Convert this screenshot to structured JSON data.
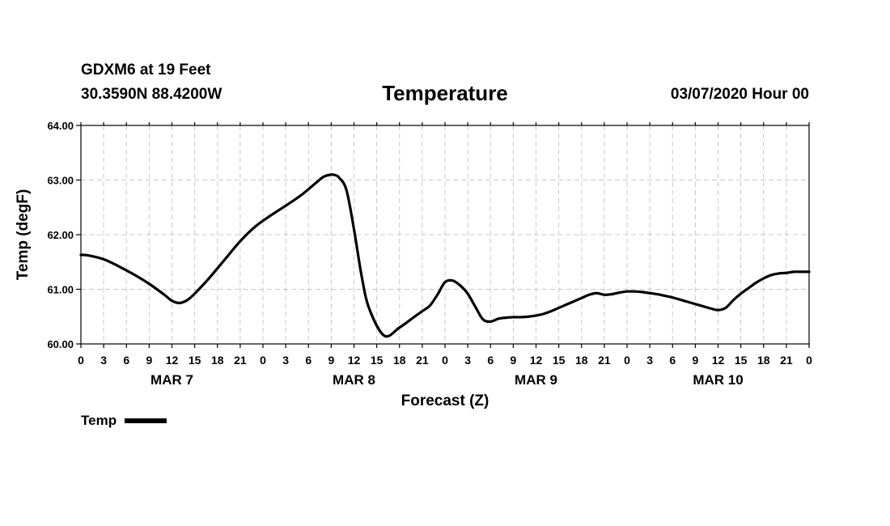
{
  "header": {
    "station": "GDXM6 at 19 Feet",
    "coords": "30.3590N 88.4200W",
    "datetime": "03/07/2020 Hour 00"
  },
  "chart_data": {
    "type": "line",
    "title": "Temperature",
    "xlabel": "Forecast (Z)",
    "ylabel": "Temp (degF)",
    "ylim": [
      60,
      64
    ],
    "y_ticks": [
      "60.00",
      "61.00",
      "62.00",
      "63.00",
      "64.00"
    ],
    "x_range_hours": [
      0,
      96
    ],
    "x_tick_labels": [
      "0",
      "3",
      "6",
      "9",
      "12",
      "15",
      "18",
      "21",
      "0",
      "3",
      "6",
      "9",
      "12",
      "15",
      "18",
      "21",
      "0",
      "3",
      "6",
      "9",
      "12",
      "15",
      "18",
      "21",
      "0",
      "3",
      "6",
      "9",
      "12",
      "15",
      "18",
      "21",
      "0"
    ],
    "day_labels": [
      "MAR 7",
      "MAR 8",
      "MAR 9",
      "MAR 10"
    ],
    "grid": true,
    "legend": [
      "Temp"
    ],
    "series": [
      {
        "name": "Temp",
        "color": "#000000",
        "x": [
          0,
          1,
          3,
          5,
          7,
          9,
          11,
          12,
          13,
          14,
          15,
          17,
          19,
          21,
          23,
          25,
          27,
          29,
          31,
          32,
          33,
          33.5,
          34,
          35,
          36,
          37,
          38,
          40,
          42,
          44,
          45,
          46,
          47,
          48,
          49,
          50,
          51,
          52,
          53,
          54,
          55,
          56,
          57,
          58,
          59,
          60,
          61,
          62,
          63,
          64,
          65,
          66,
          67,
          68,
          69,
          70,
          71,
          72,
          73,
          74,
          75,
          76,
          77,
          78,
          79,
          80,
          81,
          82,
          83,
          84,
          85,
          86,
          87,
          88,
          89,
          90,
          91,
          92,
          93,
          94,
          95,
          96
        ],
        "values": [
          61.63,
          61.62,
          61.55,
          61.42,
          61.27,
          61.1,
          60.9,
          60.79,
          60.75,
          60.8,
          60.92,
          61.22,
          61.55,
          61.88,
          62.15,
          62.35,
          62.53,
          62.72,
          62.95,
          63.06,
          63.1,
          63.09,
          63.05,
          62.82,
          62.1,
          61.25,
          60.65,
          60.15,
          60.3,
          60.5,
          60.6,
          60.7,
          60.9,
          61.13,
          61.16,
          61.07,
          60.92,
          60.68,
          60.45,
          60.41,
          60.46,
          60.48,
          60.49,
          60.49,
          60.5,
          60.52,
          60.55,
          60.6,
          60.66,
          60.72,
          60.78,
          60.84,
          60.9,
          60.93,
          60.9,
          60.91,
          60.94,
          60.96,
          60.96,
          60.95,
          60.93,
          60.91,
          60.88,
          60.85,
          60.81,
          60.77,
          60.73,
          60.69,
          60.65,
          60.62,
          60.66,
          60.8,
          60.92,
          61.02,
          61.12,
          61.2,
          61.26,
          61.29,
          61.3,
          61.32,
          61.32,
          61.32
        ]
      }
    ]
  }
}
